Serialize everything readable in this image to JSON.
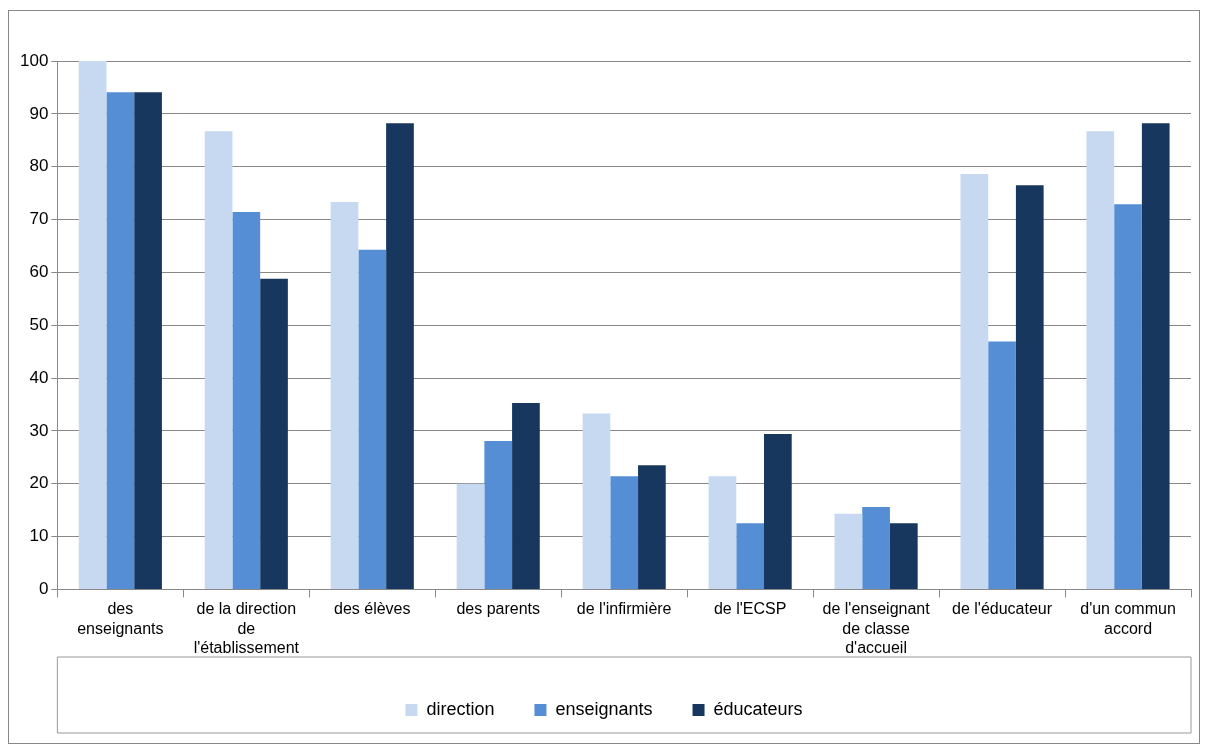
{
  "chart_data": {
    "type": "bar",
    "categories": [
      "des enseignants",
      "de la direction de l'établissement",
      "des élèves",
      "des parents",
      "de l'infirmière",
      "de l'ECSP",
      "de l'enseignant de classe d'accueil",
      "de l'éducateur",
      "d'un commun accord"
    ],
    "series": [
      {
        "name": "direction",
        "color": "#c6d9f1",
        "values": [
          100,
          86.7,
          73.3,
          20,
          33.3,
          21.4,
          14.3,
          78.6,
          86.7
        ]
      },
      {
        "name": "enseignants",
        "color": "#558ed5",
        "values": [
          94.1,
          71.4,
          64.3,
          28.1,
          21.4,
          12.5,
          15.6,
          46.9,
          72.9
        ]
      },
      {
        "name": "éducateurs",
        "color": "#17375e",
        "values": [
          94.1,
          58.8,
          88.2,
          35.3,
          23.5,
          29.4,
          12.5,
          76.5,
          88.2
        ]
      }
    ],
    "ylim": [
      0,
      100
    ],
    "yticks": [
      0,
      10,
      20,
      30,
      40,
      50,
      60,
      70,
      80,
      90,
      100
    ],
    "grid": "y",
    "legend": "bottom"
  }
}
